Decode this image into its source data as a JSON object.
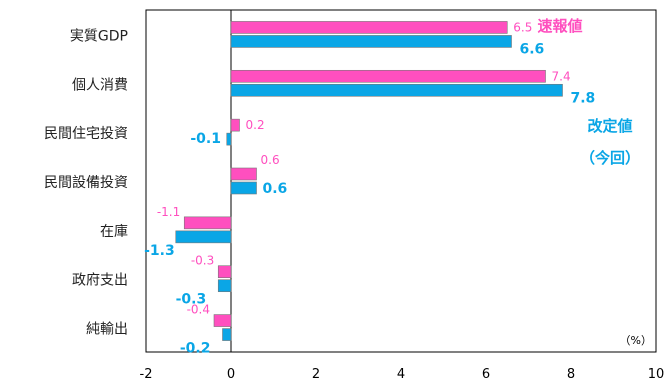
{
  "chart_data": {
    "type": "bar",
    "orientation": "horizontal",
    "categories": [
      "実質GDP",
      "個人消費",
      "民間住宅投資",
      "民間設備投資",
      "在庫",
      "政府支出",
      "純輸出"
    ],
    "series": [
      {
        "name": "速報値",
        "values": [
          6.5,
          7.4,
          0.2,
          0.6,
          -1.1,
          -0.3,
          -0.4
        ],
        "color": "#ff4fbf"
      },
      {
        "name": "改定値（今回）",
        "values": [
          6.6,
          7.8,
          -0.1,
          0.6,
          -1.3,
          -0.3,
          -0.2
        ],
        "color": "#0aa6e6"
      }
    ],
    "data_labels": {
      "series_1": [
        "6.5",
        "7.4",
        "0.2",
        "0.6",
        "-1.1",
        "-0.3",
        "-0.4"
      ],
      "series_2": [
        "6.6",
        "7.8",
        "-0.1",
        "0.6",
        "-1.3",
        "-0.3",
        "-0.2"
      ]
    },
    "unit_label": "（%）",
    "xlim": [
      -2,
      10
    ],
    "x_ticks": [
      -2,
      0,
      2,
      4,
      6,
      8,
      10
    ],
    "x_tick_labels": [
      "-2",
      "0",
      "2",
      "4",
      "6",
      "8",
      "10"
    ],
    "grid": false,
    "legend": {
      "entry_1": "速報値",
      "entry_2_line_1": "改定値",
      "entry_2_line_2": "（今回）",
      "placement": "inline-right"
    },
    "colors": {
      "axis": "#000000",
      "text": "#222222",
      "bar_outline": "#777777"
    }
  }
}
